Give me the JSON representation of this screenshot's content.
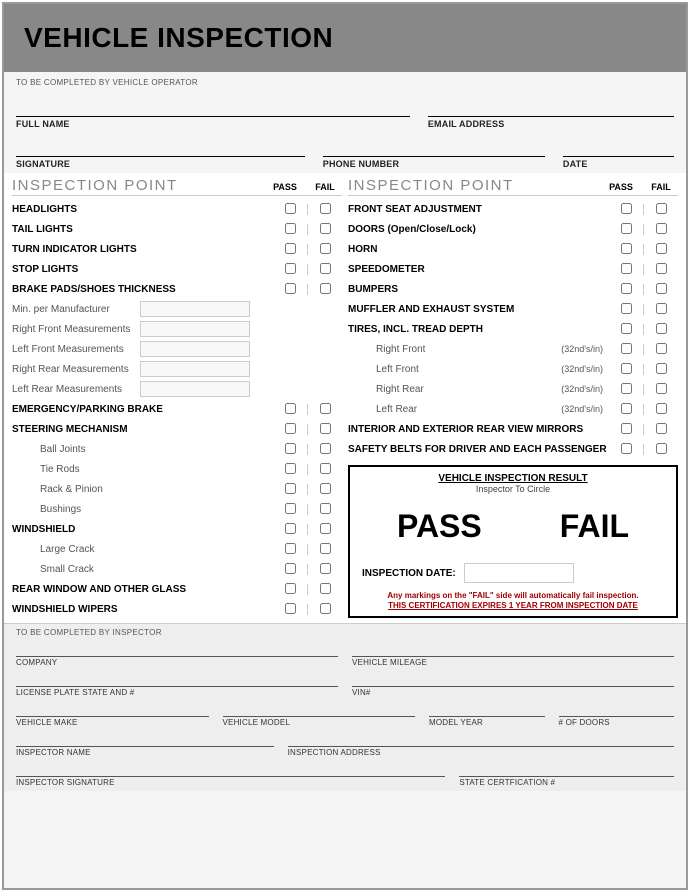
{
  "title": "VEHICLE INSPECTION",
  "operator_note": "TO BE COMPLETED BY VEHICLE OPERATOR",
  "operator_fields": {
    "full_name": "FULL NAME",
    "email": "EMAIL ADDRESS",
    "signature": "SIGNATURE",
    "phone": "PHONE NUMBER",
    "date": "DATE"
  },
  "inspection_header": {
    "title": "INSPECTION POINT",
    "pass": "PASS",
    "fail": "FAIL"
  },
  "left_points": [
    {
      "label": "HEADLIGHTS",
      "bold": true,
      "chk": true
    },
    {
      "label": "TAIL LIGHTS",
      "bold": true,
      "chk": true
    },
    {
      "label": "TURN INDICATOR LIGHTS",
      "bold": true,
      "chk": true
    },
    {
      "label": "STOP LIGHTS",
      "bold": true,
      "chk": true
    },
    {
      "label": "BRAKE PADS/SHOES THICKNESS",
      "bold": true,
      "chk": true
    }
  ],
  "measurements": [
    {
      "label": "Min. per Manufacturer"
    },
    {
      "label": "Right Front Measurements"
    },
    {
      "label": "Left Front Measurements"
    },
    {
      "label": "Right Rear Measurements"
    },
    {
      "label": "Left Rear Measurements"
    }
  ],
  "left_points2": [
    {
      "label": "EMERGENCY/PARKING BRAKE",
      "bold": true,
      "chk": true
    },
    {
      "label": "STEERING MECHANISM",
      "bold": true,
      "chk": true
    },
    {
      "label": "Ball Joints",
      "bold": false,
      "indent": true,
      "chk": true
    },
    {
      "label": "Tie Rods",
      "bold": false,
      "indent": true,
      "chk": true
    },
    {
      "label": "Rack & Pinion",
      "bold": false,
      "indent": true,
      "chk": true
    },
    {
      "label": "Bushings",
      "bold": false,
      "indent": true,
      "chk": true
    },
    {
      "label": "WINDSHIELD",
      "bold": true,
      "chk": true
    },
    {
      "label": "Large Crack",
      "bold": false,
      "indent": true,
      "chk": true
    },
    {
      "label": "Small Crack",
      "bold": false,
      "indent": true,
      "chk": true
    },
    {
      "label": "REAR WINDOW AND OTHER GLASS",
      "bold": true,
      "chk": true
    },
    {
      "label": "WINDSHIELD WIPERS",
      "bold": true,
      "chk": true
    }
  ],
  "right_points": [
    {
      "label": "FRONT SEAT ADJUSTMENT",
      "bold": true,
      "chk": true
    },
    {
      "label": "DOORS (Open/Close/Lock)",
      "bold": true,
      "chk": true
    },
    {
      "label": "HORN",
      "bold": true,
      "chk": true
    },
    {
      "label": "SPEEDOMETER",
      "bold": true,
      "chk": true
    },
    {
      "label": "BUMPERS",
      "bold": true,
      "chk": true
    },
    {
      "label": "MUFFLER AND EXHAUST SYSTEM",
      "bold": true,
      "chk": true
    },
    {
      "label": "TIRES, INCL. TREAD DEPTH",
      "bold": true,
      "chk": true
    },
    {
      "label": "Right Front",
      "bold": false,
      "indent": true,
      "chk": true,
      "paren": "(32nd's/in)"
    },
    {
      "label": "Left Front",
      "bold": false,
      "indent": true,
      "chk": true,
      "paren": "(32nd's/in)"
    },
    {
      "label": "Right Rear",
      "bold": false,
      "indent": true,
      "chk": true,
      "paren": "(32nd's/in)"
    },
    {
      "label": "Left Rear",
      "bold": false,
      "indent": true,
      "chk": true,
      "paren": "(32nd's/in)"
    },
    {
      "label": "INTERIOR AND EXTERIOR REAR VIEW MIRRORS",
      "bold": true,
      "chk": true
    },
    {
      "label": "SAFETY BELTS FOR DRIVER AND EACH PASSENGER",
      "bold": true,
      "chk": true
    }
  ],
  "result": {
    "title": "VEHICLE INSPECTION RESULT",
    "subtitle": "Inspector To Circle",
    "pass": "PASS",
    "fail": "FAIL",
    "date_label": "INSPECTION DATE:",
    "warn1": "Any markings on the \"FAIL\" side will automatically fail inspection.",
    "warn2": "THIS CERTIFICATION EXPIRES 1 YEAR FROM INSPECTION DATE"
  },
  "inspector_note": "TO BE COMPLETED BY INSPECTOR",
  "inspector_fields": {
    "company": "COMPANY",
    "mileage": "VEHICLE MILEAGE",
    "plate": "LICENSE PLATE STATE AND #",
    "vin": "VIN#",
    "make": "VEHICLE MAKE",
    "model": "VEHICLE MODEL",
    "year": "MODEL YEAR",
    "doors": "# OF DOORS",
    "insp_name": "INSPECTOR NAME",
    "insp_addr": "INSPECTION ADDRESS",
    "insp_sig": "INSPECTOR SIGNATURE",
    "state_cert": "STATE CERTFICATION #"
  }
}
